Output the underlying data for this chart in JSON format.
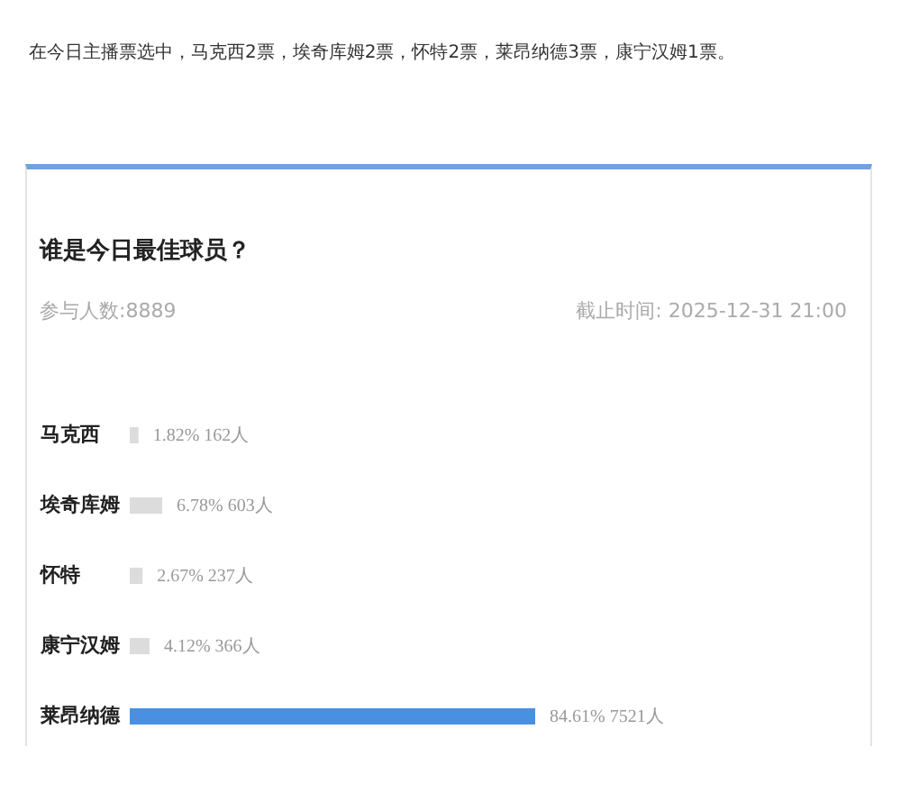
{
  "chart_data": {
    "type": "bar",
    "orientation": "horizontal",
    "title": "谁是今日最佳球员？",
    "subtitle": "参与人数:8889",
    "annotations": [
      "在今日主播票选中，马克西2票，埃奇库姆2票，怀特2票，莱昂纳德3票，康宁汉姆1票。",
      "截止时间: 2025-12-31 21:00"
    ],
    "categories": [
      "马克西",
      "埃奇库姆",
      "怀特",
      "康宁汉姆",
      "莱昂纳德"
    ],
    "values": [
      1.82,
      6.78,
      2.67,
      4.12,
      84.61
    ],
    "colors": [
      "#dcdcdc",
      "#dcdcdc",
      "#dcdcdc",
      "#dcdcdc",
      "#4a90e2"
    ],
    "value_labels": [
      "1.82% 162人",
      "6.78% 603人",
      "2.67% 237人",
      "4.12% 366人",
      "84.61% 7521人"
    ]
  }
}
